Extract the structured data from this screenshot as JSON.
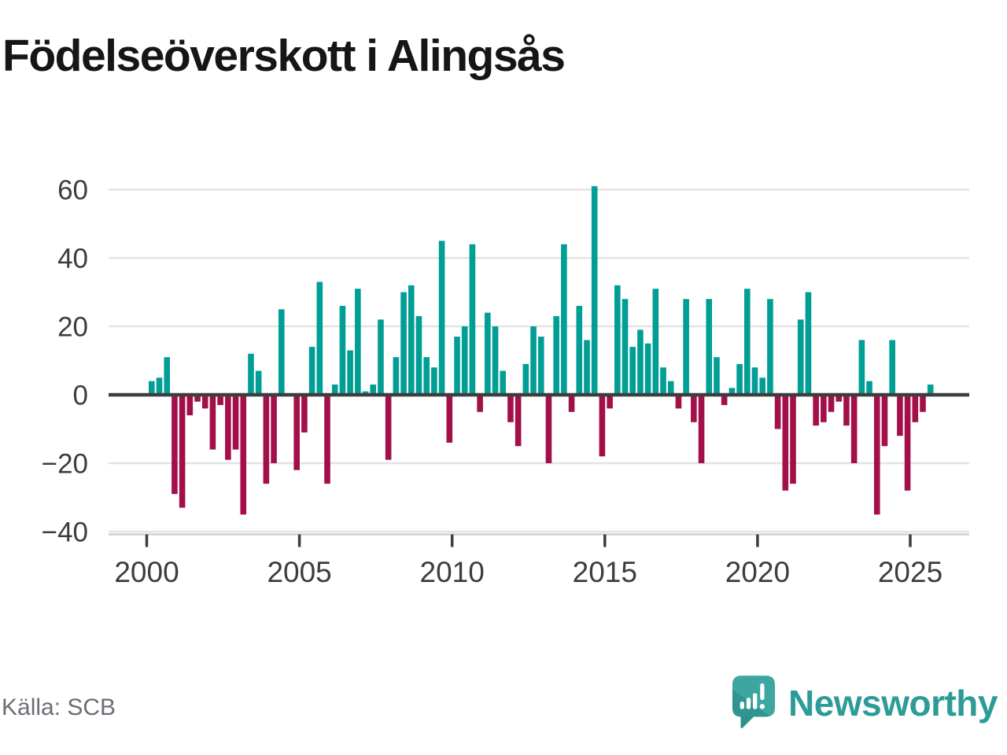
{
  "title": "Födelseöverskott i Alingsås",
  "source": "Källa: SCB",
  "logo": {
    "text": "Newsworthy"
  },
  "chart_data": {
    "type": "bar",
    "title": "Födelseöverskott i Alingsås",
    "x_unit": "quarter",
    "start_year": 2000,
    "start_quarter": 1,
    "quarters_per_year": 4,
    "values": [
      4,
      5,
      11,
      -29,
      -33,
      -6,
      -2,
      -4,
      -16,
      -3,
      -19,
      -16,
      -35,
      12,
      7,
      -26,
      -20,
      25,
      0,
      -22,
      -11,
      14,
      33,
      -26,
      3,
      26,
      13,
      31,
      1,
      3,
      22,
      -19,
      11,
      30,
      32,
      23,
      11,
      8,
      45,
      -14,
      17,
      20,
      44,
      -5,
      24,
      20,
      7,
      -8,
      -15,
      9,
      20,
      17,
      -20,
      23,
      44,
      -5,
      26,
      16,
      61,
      -18,
      -4,
      32,
      28,
      14,
      19,
      15,
      31,
      8,
      4,
      -4,
      28,
      -8,
      -20,
      28,
      11,
      -3,
      2,
      9,
      31,
      8,
      5,
      28,
      -10,
      -28,
      -26,
      22,
      30,
      -9,
      -8,
      -5,
      -2,
      -9,
      -20,
      16,
      4,
      -35,
      -15,
      16,
      -12,
      -28,
      -8,
      -5,
      3
    ],
    "yticks": [
      60,
      40,
      20,
      0,
      -20,
      -40
    ],
    "xticks": [
      2000,
      2005,
      2010,
      2015,
      2020,
      2025
    ],
    "ylim": [
      -40,
      65
    ],
    "grid": true,
    "legend": "none",
    "positive_color": "#009e95",
    "negative_color": "#a31049",
    "grid_color": "#e3e3e3",
    "zero_line_color": "#3d3d3d",
    "axis_line_color": "#cfcfcf",
    "tick_text_color": "#3d3d3d"
  }
}
